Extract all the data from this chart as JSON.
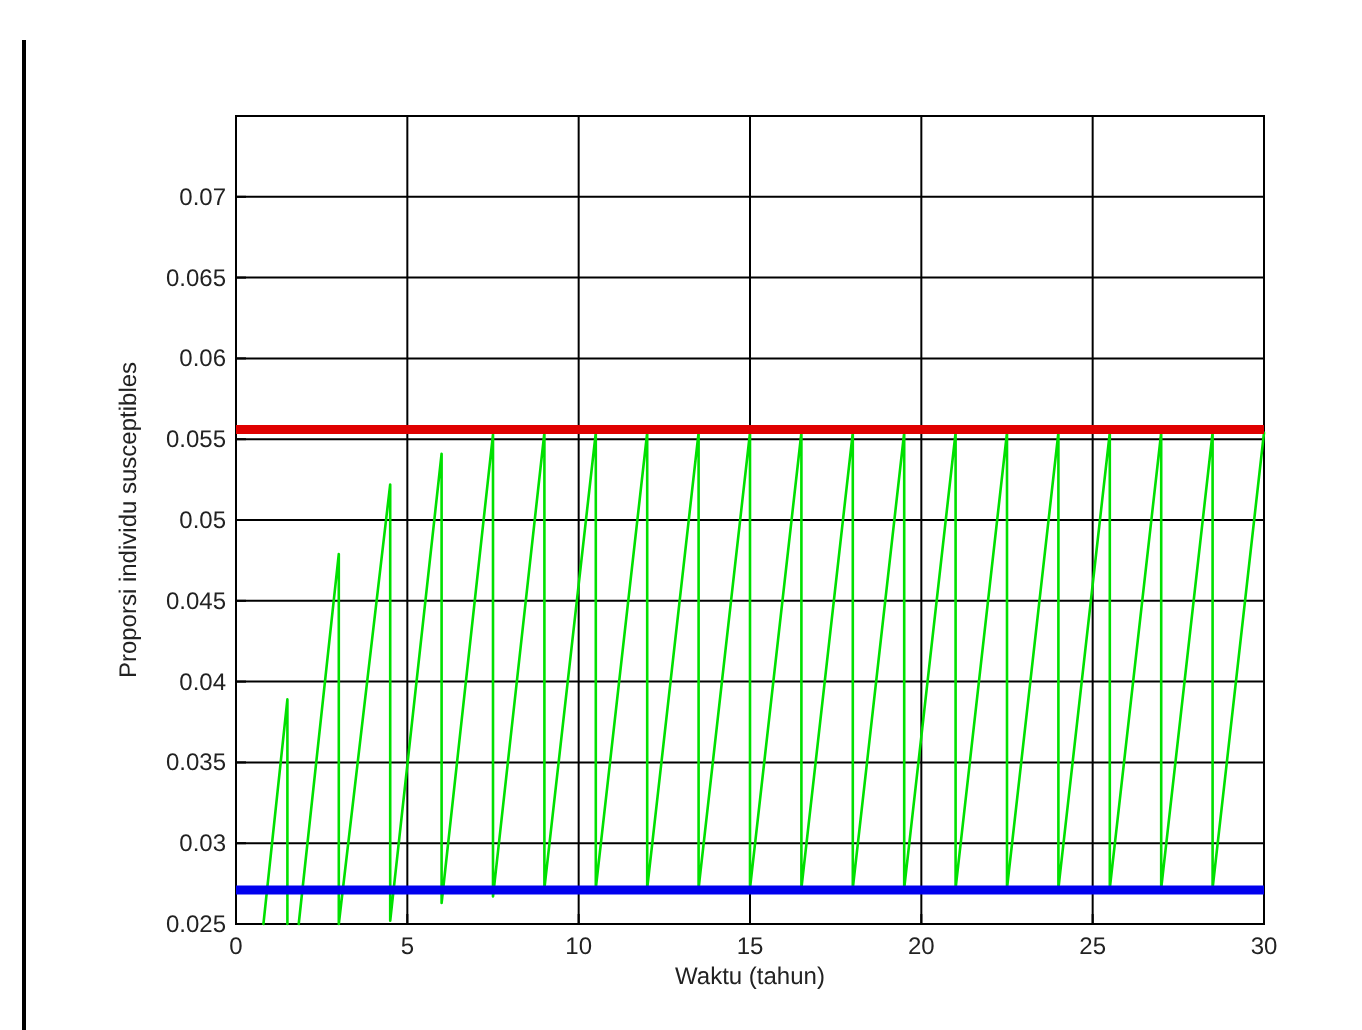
{
  "chart_data": {
    "type": "line",
    "xlabel": "Waktu (tahun)",
    "ylabel": "Proporsi individu susceptibles",
    "xlim": [
      0,
      30
    ],
    "ylim": [
      0.025,
      0.075
    ],
    "xticks": [
      0,
      5,
      10,
      15,
      20,
      25,
      30
    ],
    "yticks": [
      0.025,
      0.03,
      0.035,
      0.04,
      0.045,
      0.05,
      0.055,
      0.06,
      0.065,
      0.07
    ],
    "grid": true,
    "marker": "none",
    "line_style": "solid",
    "series": [
      {
        "color": "#00e000",
        "x": [
          0.8,
          1.5,
          1.5,
          1.65,
          1.83,
          3,
          3,
          4.5,
          4.5,
          6,
          6,
          7.5,
          7.5,
          9,
          9,
          10.5,
          10.5,
          12,
          12,
          13.5,
          13.5,
          15,
          15,
          16.5,
          16.5,
          18,
          18,
          19.5,
          19.5,
          21,
          21,
          22.5,
          22.5,
          24,
          24,
          25.5,
          25.5,
          27,
          27,
          28.5,
          28.5,
          30
        ],
        "values": [
          0.025,
          0.0389,
          0.025,
          null,
          0.025,
          0.0479,
          0.025,
          0.0522,
          0.0252,
          0.0541,
          0.0263,
          0.0553,
          0.0267,
          0.0554,
          0.0272,
          0.0554,
          0.0272,
          0.0554,
          0.0272,
          0.0554,
          0.0272,
          0.0554,
          0.0272,
          0.0554,
          0.0272,
          0.0554,
          0.0272,
          0.0554,
          0.0272,
          0.0554,
          0.0272,
          0.0554,
          0.0272,
          0.0554,
          0.0272,
          0.0554,
          0.0272,
          0.0554,
          0.0272,
          0.0554,
          0.0272,
          0.0554
        ]
      }
    ],
    "ref_lines": [
      {
        "axis": "y",
        "value": 0.0556,
        "color": "#e00000"
      },
      {
        "axis": "y",
        "value": 0.0271,
        "color": "#0000ee"
      }
    ]
  }
}
